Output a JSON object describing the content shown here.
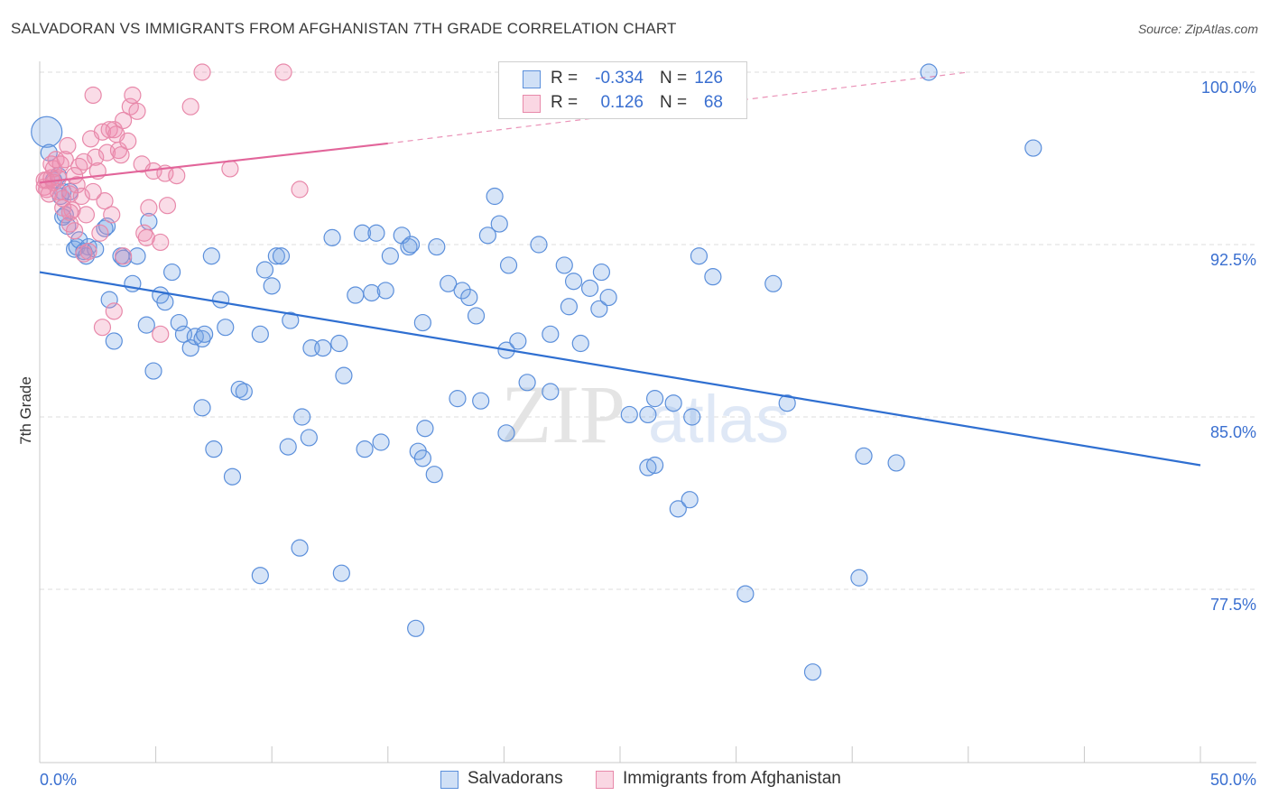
{
  "title": "SALVADORAN VS IMMIGRANTS FROM AFGHANISTAN 7TH GRADE CORRELATION CHART",
  "source": "Source: ZipAtlas.com",
  "watermark": {
    "zip": "ZIP",
    "atlas": "atlas"
  },
  "colors": {
    "blue_fill": "rgba(120,165,230,0.30)",
    "blue_stroke": "#5b8fdb",
    "blue_line": "#2f6fd1",
    "pink_fill": "rgba(240,140,175,0.30)",
    "pink_stroke": "#e889aa",
    "pink_line": "#e2659a",
    "axis_label": "#3a6fd0",
    "grid": "#dddddd"
  },
  "legend": {
    "rows": [
      {
        "r_label": "R =",
        "r_value": "-0.334",
        "n_label": "N =",
        "n_value": "126"
      },
      {
        "r_label": "R =",
        "r_value": "0.126",
        "n_label": "N =",
        "n_value": "68"
      }
    ]
  },
  "bottom_legend": [
    "Salvadorans",
    "Immigrants from Afghanistan"
  ],
  "chart_data": {
    "type": "scatter",
    "title": "SALVADORAN VS IMMIGRANTS FROM AFGHANISTAN 7TH GRADE CORRELATION CHART",
    "xlabel": "",
    "ylabel": "7th Grade",
    "xlim": [
      0,
      50
    ],
    "ylim": [
      71.0,
      100.6
    ],
    "x_tick_labels": [
      "0.0%",
      "50.0%"
    ],
    "y_ticks": [
      77.5,
      85.0,
      92.5,
      100.0
    ],
    "y_tick_labels": [
      "77.5%",
      "85.0%",
      "92.5%",
      "100.0%"
    ],
    "series": [
      {
        "name": "Salvadorans",
        "r": -0.334,
        "n": 126,
        "trend": {
          "x": [
            0,
            50
          ],
          "y": [
            91.3,
            82.9
          ]
        },
        "points": [
          [
            0.3,
            97.4
          ],
          [
            0.4,
            96.5
          ],
          [
            0.8,
            95.5
          ],
          [
            1.0,
            94.8
          ],
          [
            1.1,
            93.8
          ],
          [
            1.2,
            93.3
          ],
          [
            1.5,
            92.3
          ],
          [
            1.6,
            92.4
          ],
          [
            1.7,
            92.7
          ],
          [
            1.9,
            92.2
          ],
          [
            2.1,
            92.4
          ],
          [
            2.0,
            92.0
          ],
          [
            2.8,
            93.2
          ],
          [
            2.9,
            93.3
          ],
          [
            3.0,
            90.1
          ],
          [
            3.5,
            92.0
          ],
          [
            3.6,
            91.9
          ],
          [
            4.2,
            92.0
          ],
          [
            4.6,
            89.0
          ],
          [
            4.7,
            93.5
          ],
          [
            4.9,
            87.0
          ],
          [
            5.2,
            90.3
          ],
          [
            5.4,
            90.0
          ],
          [
            5.7,
            91.3
          ],
          [
            6.0,
            89.1
          ],
          [
            6.2,
            88.6
          ],
          [
            6.5,
            88.0
          ],
          [
            6.7,
            88.5
          ],
          [
            7.0,
            88.4
          ],
          [
            7.1,
            88.6
          ],
          [
            7.4,
            92.0
          ],
          [
            7.8,
            90.1
          ],
          [
            8.0,
            88.9
          ],
          [
            8.6,
            86.2
          ],
          [
            8.8,
            86.1
          ],
          [
            9.5,
            88.6
          ],
          [
            9.7,
            91.4
          ],
          [
            10.0,
            90.7
          ],
          [
            10.2,
            92.0
          ],
          [
            10.4,
            92.0
          ],
          [
            10.8,
            89.2
          ],
          [
            11.3,
            85.0
          ],
          [
            11.7,
            88.0
          ],
          [
            12.2,
            88.0
          ],
          [
            12.6,
            92.8
          ],
          [
            12.9,
            88.2
          ],
          [
            13.1,
            86.8
          ],
          [
            13.6,
            90.3
          ],
          [
            13.9,
            93.0
          ],
          [
            14.3,
            90.4
          ],
          [
            14.5,
            93.0
          ],
          [
            14.9,
            90.5
          ],
          [
            15.1,
            92.0
          ],
          [
            15.6,
            92.9
          ],
          [
            15.9,
            92.4
          ],
          [
            16.0,
            92.5
          ],
          [
            16.5,
            89.1
          ],
          [
            17.1,
            92.4
          ],
          [
            17.6,
            90.8
          ],
          [
            18.2,
            90.5
          ],
          [
            18.5,
            90.2
          ],
          [
            18.8,
            89.4
          ],
          [
            19.3,
            92.9
          ],
          [
            19.6,
            94.6
          ],
          [
            19.8,
            93.4
          ],
          [
            20.1,
            87.9
          ],
          [
            20.2,
            91.6
          ],
          [
            20.6,
            88.3
          ],
          [
            21.0,
            86.5
          ],
          [
            21.5,
            92.5
          ],
          [
            22.0,
            86.1
          ],
          [
            22.0,
            88.6
          ],
          [
            22.6,
            91.6
          ],
          [
            23.0,
            90.9
          ],
          [
            23.3,
            88.2
          ],
          [
            23.7,
            90.6
          ],
          [
            24.1,
            89.7
          ],
          [
            24.2,
            91.3
          ],
          [
            24.5,
            90.2
          ],
          [
            25.4,
            85.1
          ],
          [
            26.2,
            85.1
          ],
          [
            26.2,
            82.8
          ],
          [
            26.5,
            85.8
          ],
          [
            26.5,
            82.9
          ],
          [
            27.3,
            85.6
          ],
          [
            27.5,
            81.0
          ],
          [
            28.0,
            81.4
          ],
          [
            28.1,
            85.0
          ],
          [
            28.4,
            92.0
          ],
          [
            29.0,
            91.1
          ],
          [
            30.4,
            77.3
          ],
          [
            31.6,
            90.8
          ],
          [
            32.2,
            85.6
          ],
          [
            33.3,
            73.9
          ],
          [
            35.3,
            78.0
          ],
          [
            35.5,
            83.3
          ],
          [
            36.9,
            83.0
          ],
          [
            38.3,
            100.0
          ],
          [
            42.8,
            96.7
          ],
          [
            11.2,
            79.3
          ],
          [
            9.5,
            78.1
          ],
          [
            13.0,
            78.2
          ],
          [
            16.2,
            75.8
          ],
          [
            10.7,
            83.7
          ],
          [
            11.6,
            84.1
          ],
          [
            14.0,
            83.6
          ],
          [
            14.7,
            83.9
          ],
          [
            16.3,
            83.5
          ],
          [
            16.6,
            84.5
          ],
          [
            17.0,
            82.5
          ],
          [
            16.5,
            83.2
          ],
          [
            18.0,
            85.8
          ],
          [
            19.0,
            85.7
          ],
          [
            20.1,
            84.3
          ],
          [
            7.0,
            85.4
          ],
          [
            7.5,
            83.6
          ],
          [
            8.3,
            82.4
          ],
          [
            22.8,
            89.8
          ],
          [
            3.2,
            88.3
          ],
          [
            4.0,
            90.8
          ],
          [
            2.4,
            92.3
          ],
          [
            1.0,
            93.7
          ],
          [
            0.9,
            94.6
          ],
          [
            1.3,
            94.8
          ],
          [
            0.6,
            95.3
          ]
        ]
      },
      {
        "name": "Immigrants from Afghanistan",
        "r": 0.126,
        "n": 68,
        "trend": {
          "x": [
            0,
            15
          ],
          "y": [
            95.2,
            96.9
          ]
        },
        "trend_extension": {
          "x": [
            15,
            40
          ],
          "y": [
            96.9,
            100.0
          ]
        },
        "points": [
          [
            0.2,
            95.3
          ],
          [
            0.2,
            95.0
          ],
          [
            0.3,
            94.9
          ],
          [
            0.3,
            95.3
          ],
          [
            0.5,
            95.4
          ],
          [
            0.5,
            96.0
          ],
          [
            0.6,
            95.8
          ],
          [
            0.7,
            96.2
          ],
          [
            0.8,
            94.8
          ],
          [
            0.8,
            95.4
          ],
          [
            0.9,
            96.0
          ],
          [
            1.0,
            94.1
          ],
          [
            1.0,
            94.5
          ],
          [
            1.1,
            96.2
          ],
          [
            1.2,
            96.8
          ],
          [
            1.3,
            93.4
          ],
          [
            1.3,
            94.7
          ],
          [
            1.4,
            94.0
          ],
          [
            1.5,
            93.1
          ],
          [
            1.6,
            95.1
          ],
          [
            1.7,
            95.9
          ],
          [
            1.8,
            94.6
          ],
          [
            1.9,
            96.1
          ],
          [
            2.1,
            92.2
          ],
          [
            2.2,
            97.1
          ],
          [
            2.3,
            99.0
          ],
          [
            2.4,
            96.3
          ],
          [
            2.5,
            95.7
          ],
          [
            2.6,
            93.0
          ],
          [
            2.7,
            97.4
          ],
          [
            2.8,
            94.4
          ],
          [
            2.9,
            96.5
          ],
          [
            3.0,
            97.5
          ],
          [
            3.1,
            93.8
          ],
          [
            3.2,
            97.5
          ],
          [
            3.3,
            97.3
          ],
          [
            3.4,
            96.6
          ],
          [
            3.6,
            92.0
          ],
          [
            3.6,
            97.9
          ],
          [
            3.8,
            97.0
          ],
          [
            3.9,
            98.5
          ],
          [
            4.0,
            99.0
          ],
          [
            4.2,
            98.3
          ],
          [
            4.4,
            96.0
          ],
          [
            4.5,
            93.0
          ],
          [
            4.6,
            92.8
          ],
          [
            4.7,
            94.1
          ],
          [
            4.9,
            95.7
          ],
          [
            5.2,
            92.6
          ],
          [
            5.4,
            95.6
          ],
          [
            5.5,
            94.2
          ],
          [
            5.9,
            95.5
          ],
          [
            6.5,
            98.5
          ],
          [
            7.0,
            100.0
          ],
          [
            8.2,
            95.8
          ],
          [
            10.5,
            100.0
          ],
          [
            11.2,
            94.9
          ],
          [
            3.2,
            89.6
          ],
          [
            2.7,
            88.9
          ],
          [
            5.2,
            88.6
          ],
          [
            1.3,
            93.9
          ],
          [
            2.0,
            93.8
          ],
          [
            1.5,
            95.5
          ],
          [
            0.4,
            94.7
          ],
          [
            0.6,
            95.2
          ],
          [
            1.9,
            92.1
          ],
          [
            2.3,
            94.8
          ],
          [
            3.5,
            96.4
          ]
        ]
      }
    ]
  }
}
